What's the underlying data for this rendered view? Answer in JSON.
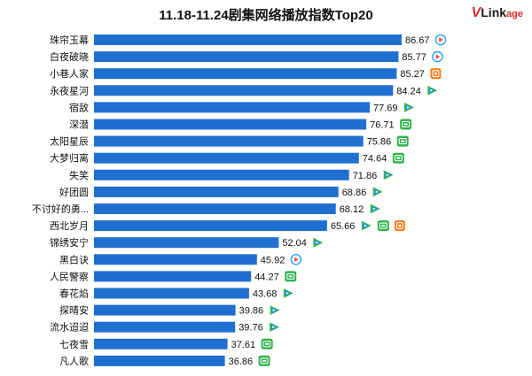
{
  "title": "11.18-11.24剧集网络播放指数Top20",
  "logo": {
    "v": "V",
    "link": "Link",
    "age": "age"
  },
  "colors": {
    "bar": "#1f6fd1",
    "tencent_green": "#3cba3c",
    "tencent_blue": "#1e8cf0",
    "tencent_orange": "#ff9a1a",
    "youku_blue": "#1aa3ff",
    "youku_red": "#ff3b3b",
    "iqiyi_green": "#2fb34a",
    "mango_orange": "#ff7a1a"
  },
  "chart_data": {
    "type": "bar",
    "orientation": "horizontal",
    "title": "11.18-11.24剧集网络播放指数Top20",
    "categories": [
      "珠帘玉幕",
      "白夜破晓",
      "小巷人家",
      "永夜星河",
      "宿敌",
      "深潜",
      "太阳星辰",
      "大梦归离",
      "失笑",
      "好团圆",
      "不讨好的勇...",
      "西北岁月",
      "锦绣安宁",
      "黑白诀",
      "人民警察",
      "春花焰",
      "探晴安",
      "流水迢迢",
      "七夜雪",
      "凡人歌"
    ],
    "values": [
      86.67,
      85.77,
      85.27,
      84.24,
      77.69,
      76.71,
      75.86,
      74.64,
      71.86,
      68.86,
      68.12,
      65.66,
      52.04,
      45.92,
      44.27,
      43.68,
      39.86,
      39.76,
      37.61,
      36.86
    ],
    "platforms": [
      [
        "youku-icon"
      ],
      [
        "youku-icon"
      ],
      [
        "mango-icon"
      ],
      [
        "tencent-video-icon"
      ],
      [
        "tencent-video-icon"
      ],
      [
        "iqiyi-icon"
      ],
      [
        "iqiyi-icon"
      ],
      [
        "iqiyi-icon"
      ],
      [
        "tencent-video-icon"
      ],
      [
        "tencent-video-icon"
      ],
      [
        "tencent-video-icon"
      ],
      [
        "tencent-video-icon",
        "iqiyi-icon",
        "mango-icon"
      ],
      [
        "tencent-video-icon"
      ],
      [
        "youku-icon"
      ],
      [
        "iqiyi-icon"
      ],
      [
        "tencent-video-icon"
      ],
      [
        "tencent-video-icon"
      ],
      [
        "tencent-video-icon"
      ],
      [
        "iqiyi-icon"
      ],
      [
        "iqiyi-icon"
      ]
    ],
    "xlim": [
      0,
      100
    ],
    "grid": false,
    "legend": "none"
  }
}
